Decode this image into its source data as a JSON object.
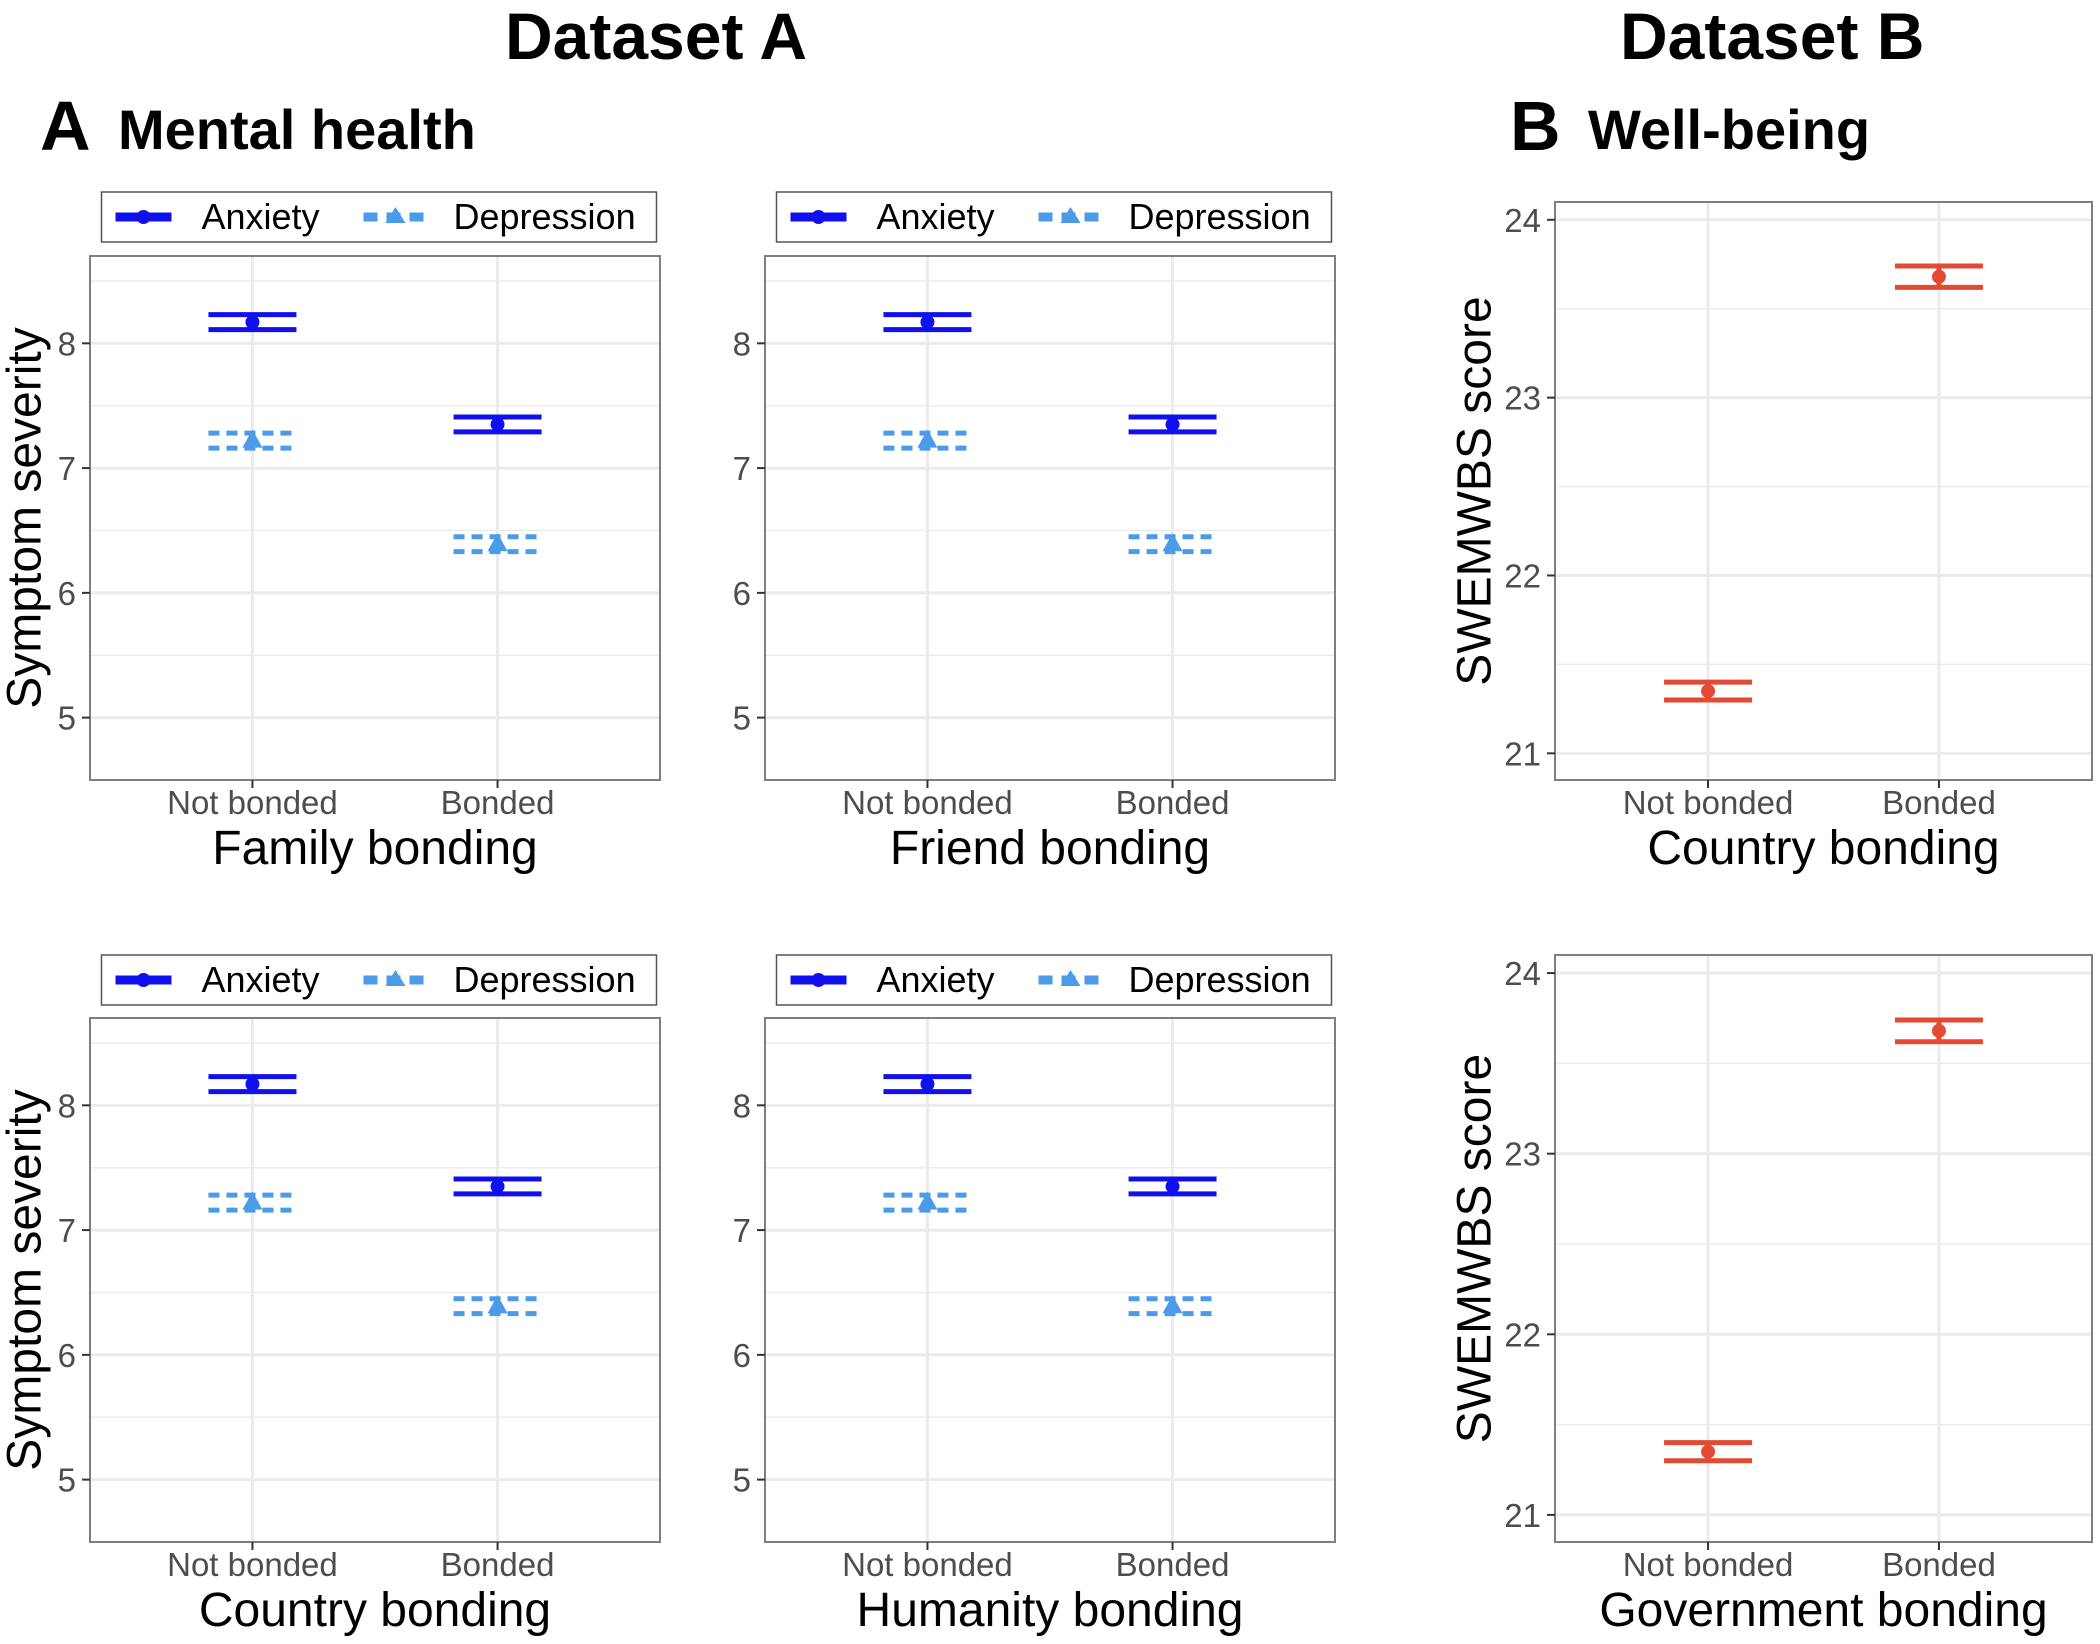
{
  "figure": {
    "dataset_a_title": "Dataset A",
    "dataset_b_title": "Dataset B",
    "panel_a_letter": "A",
    "panel_a_title": "Mental health",
    "panel_b_letter": "B",
    "panel_b_title": "Well-being"
  },
  "colors": {
    "anxiety": "#1010ee",
    "depression": "#4b9be8",
    "wellbeing": "#e24a33",
    "grid": "#ebebeb",
    "panel_border": "#7f7f7f",
    "axis_text": "#4d4d4d"
  },
  "chart_data": [
    {
      "id": "family",
      "type": "errorbar",
      "xlabel": "Family bonding",
      "ylabel": "Symptom severity",
      "categories": [
        "Not bonded",
        "Bonded"
      ],
      "ylim": [
        4.5,
        8.7
      ],
      "yticks": [
        5,
        6,
        7,
        8
      ],
      "grid": true,
      "legend": {
        "position": "top",
        "entries": [
          "Anxiety",
          "Depression"
        ]
      },
      "series": [
        {
          "name": "Anxiety",
          "color_key": "anxiety",
          "marker": "circle",
          "line": "solid",
          "values": [
            8.17,
            7.35
          ],
          "lower": [
            8.11,
            7.29
          ],
          "upper": [
            8.23,
            7.41
          ]
        },
        {
          "name": "Depression",
          "color_key": "depression",
          "marker": "triangle",
          "line": "dashed",
          "values": [
            7.22,
            6.39
          ],
          "lower": [
            7.16,
            6.33
          ],
          "upper": [
            7.28,
            6.45
          ]
        }
      ]
    },
    {
      "id": "friend",
      "type": "errorbar",
      "xlabel": "Friend bonding",
      "ylabel": "",
      "categories": [
        "Not bonded",
        "Bonded"
      ],
      "ylim": [
        4.5,
        8.7
      ],
      "yticks": [
        5,
        6,
        7,
        8
      ],
      "grid": true,
      "legend": {
        "position": "top",
        "entries": [
          "Anxiety",
          "Depression"
        ]
      },
      "series": [
        {
          "name": "Anxiety",
          "color_key": "anxiety",
          "marker": "circle",
          "line": "solid",
          "values": [
            8.17,
            7.35
          ],
          "lower": [
            8.11,
            7.29
          ],
          "upper": [
            8.23,
            7.41
          ]
        },
        {
          "name": "Depression",
          "color_key": "depression",
          "marker": "triangle",
          "line": "dashed",
          "values": [
            7.22,
            6.39
          ],
          "lower": [
            7.16,
            6.33
          ],
          "upper": [
            7.28,
            6.45
          ]
        }
      ]
    },
    {
      "id": "country-a",
      "type": "errorbar",
      "xlabel": "Country bonding",
      "ylabel": "Symptom severity",
      "categories": [
        "Not bonded",
        "Bonded"
      ],
      "ylim": [
        4.5,
        8.7
      ],
      "yticks": [
        5,
        6,
        7,
        8
      ],
      "grid": true,
      "legend": {
        "position": "top",
        "entries": [
          "Anxiety",
          "Depression"
        ]
      },
      "series": [
        {
          "name": "Anxiety",
          "color_key": "anxiety",
          "marker": "circle",
          "line": "solid",
          "values": [
            8.17,
            7.35
          ],
          "lower": [
            8.11,
            7.29
          ],
          "upper": [
            8.23,
            7.41
          ]
        },
        {
          "name": "Depression",
          "color_key": "depression",
          "marker": "triangle",
          "line": "dashed",
          "values": [
            7.22,
            6.39
          ],
          "lower": [
            7.16,
            6.33
          ],
          "upper": [
            7.28,
            6.45
          ]
        }
      ]
    },
    {
      "id": "humanity",
      "type": "errorbar",
      "xlabel": "Humanity bonding",
      "ylabel": "",
      "categories": [
        "Not bonded",
        "Bonded"
      ],
      "ylim": [
        4.5,
        8.7
      ],
      "yticks": [
        5,
        6,
        7,
        8
      ],
      "grid": true,
      "legend": {
        "position": "top",
        "entries": [
          "Anxiety",
          "Depression"
        ]
      },
      "series": [
        {
          "name": "Anxiety",
          "color_key": "anxiety",
          "marker": "circle",
          "line": "solid",
          "values": [
            8.17,
            7.35
          ],
          "lower": [
            8.11,
            7.29
          ],
          "upper": [
            8.23,
            7.41
          ]
        },
        {
          "name": "Depression",
          "color_key": "depression",
          "marker": "triangle",
          "line": "dashed",
          "values": [
            7.22,
            6.39
          ],
          "lower": [
            7.16,
            6.33
          ],
          "upper": [
            7.28,
            6.45
          ]
        }
      ]
    },
    {
      "id": "country-b",
      "type": "errorbar",
      "xlabel": "Country bonding",
      "ylabel": "SWEMWBS score",
      "categories": [
        "Not bonded",
        "Bonded"
      ],
      "ylim": [
        20.85,
        24.1
      ],
      "yticks": [
        21,
        22,
        23,
        24
      ],
      "grid": true,
      "series": [
        {
          "name": "",
          "color_key": "wellbeing",
          "marker": "circle",
          "line": "solid",
          "values": [
            21.35,
            23.68
          ],
          "lower": [
            21.3,
            23.62
          ],
          "upper": [
            21.4,
            23.74
          ]
        }
      ]
    },
    {
      "id": "government",
      "type": "errorbar",
      "xlabel": "Government bonding",
      "ylabel": "SWEMWBS score",
      "categories": [
        "Not bonded",
        "Bonded"
      ],
      "ylim": [
        20.85,
        24.1
      ],
      "yticks": [
        21,
        22,
        23,
        24
      ],
      "grid": true,
      "series": [
        {
          "name": "",
          "color_key": "wellbeing",
          "marker": "circle",
          "line": "solid",
          "values": [
            21.35,
            23.68
          ],
          "lower": [
            21.3,
            23.62
          ],
          "upper": [
            21.4,
            23.74
          ]
        }
      ]
    }
  ]
}
